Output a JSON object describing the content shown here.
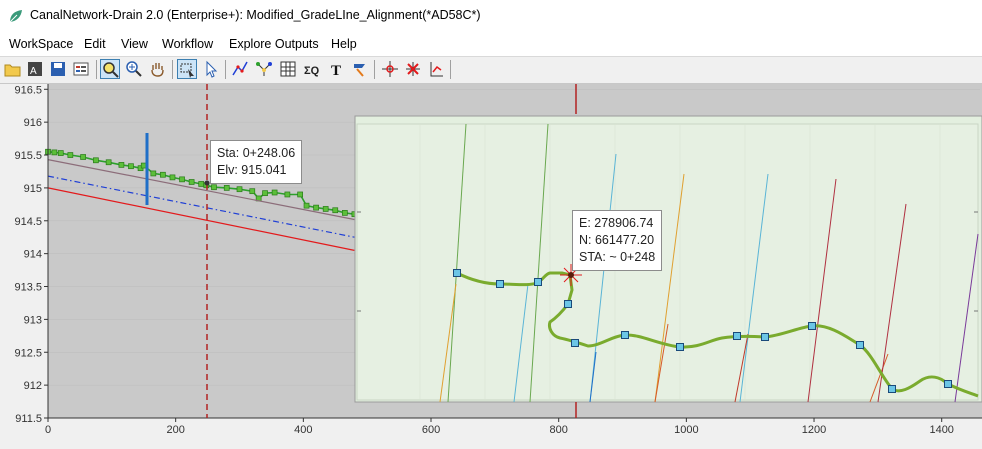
{
  "window": {
    "title": "CanalNetwork-Drain 2.0  (Enterprise+): Modified_GradeLIne_Alignment(*AD58C*)"
  },
  "menu": [
    "WorkSpace",
    "Edit",
    "View",
    "Workflow",
    "Explore Outputs",
    "Help"
  ],
  "toolbar": {
    "buttons": [
      "open-folder",
      "save-as",
      "save",
      "properties",
      "zoom",
      "zoom-in",
      "pan",
      "select-rect",
      "pointer",
      "edit-lines",
      "network",
      "grid",
      "sigma-q",
      "text",
      "flag",
      "snap",
      "cross-delete",
      "profile"
    ],
    "active": [
      "zoom",
      "select-rect"
    ]
  },
  "profile": {
    "y_ticks": [
      "916.5",
      "916",
      "915.5",
      "915",
      "914.5",
      "914",
      "913.5",
      "913",
      "912.5",
      "912",
      "911.5"
    ],
    "x_ticks": [
      "0",
      "200",
      "400",
      "600",
      "800",
      "1000",
      "1200",
      "1400"
    ],
    "station_label": {
      "sta": "Sta: 0+248.06",
      "elv": "Elv: 915.041"
    },
    "colors": {
      "ground": "#2ca02c",
      "design": "#e31a1c",
      "hgl": "#1f3fd6",
      "crest": "#8c6d7a",
      "station_line": "#b22222"
    }
  },
  "plan_view": {
    "coord_label": {
      "e": "E: 278906.74",
      "n": "N: 661477.20",
      "sta": "STA: ~ 0+248"
    },
    "colors": {
      "background": "#e3efdf",
      "alignment": "#7aab2e",
      "vertex": "#6cc6e6"
    }
  },
  "chart_data": {
    "type": "line",
    "xlabel": "",
    "ylabel": "",
    "xlim": [
      0,
      1460
    ],
    "ylim": [
      911.5,
      916.55
    ],
    "series": [
      {
        "color": "#2ca02c",
        "x": [
          0,
          10,
          20,
          35,
          55,
          75,
          95,
          115,
          130,
          145,
          150,
          165,
          180,
          195,
          210,
          225,
          240,
          248,
          260,
          280,
          300,
          320,
          330,
          340,
          355,
          375,
          395,
          405,
          420,
          435,
          450,
          465,
          480
        ],
        "y": [
          915.55,
          915.54,
          915.53,
          915.5,
          915.47,
          915.42,
          915.39,
          915.35,
          915.33,
          915.3,
          915.34,
          915.22,
          915.2,
          915.16,
          915.13,
          915.09,
          915.06,
          915.04,
          915.01,
          915.0,
          914.98,
          914.95,
          914.84,
          914.92,
          914.93,
          914.9,
          914.9,
          914.73,
          914.7,
          914.68,
          914.66,
          914.62,
          914.6
        ]
      },
      {
        "color": "#8c6d7a",
        "x": [
          0,
          480
        ],
        "y": [
          915.43,
          914.52
        ]
      },
      {
        "color": "#1f3fd6",
        "x": [
          0,
          480
        ],
        "y": [
          915.18,
          914.25
        ]
      },
      {
        "color": "#e31a1c",
        "x": [
          0,
          480
        ],
        "y": [
          915.0,
          914.05
        ]
      }
    ]
  }
}
